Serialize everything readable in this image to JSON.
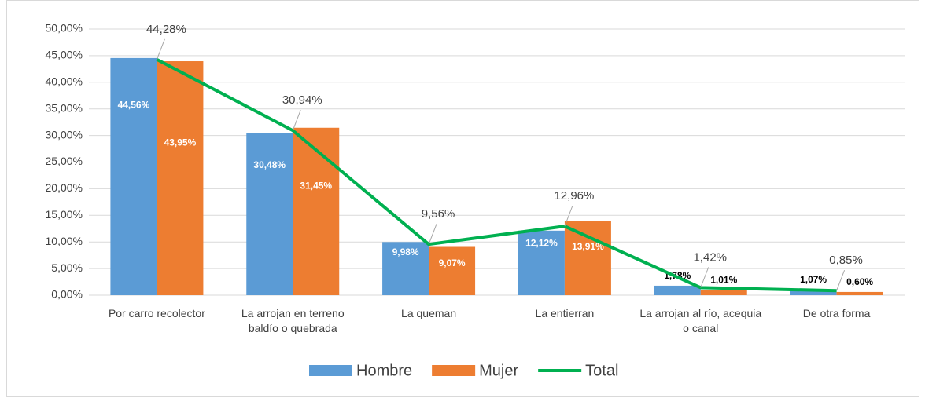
{
  "chart_data": {
    "type": "bar",
    "categories": [
      "Por carro recolector",
      "La arrojan en terreno baldío o quebrada",
      "La queman",
      "La entierran",
      "La arrojan al río, acequia o canal",
      "De otra forma"
    ],
    "series": [
      {
        "name": "Hombre",
        "color": "#5b9bd5",
        "type": "bar",
        "values": [
          44.56,
          30.48,
          9.98,
          12.12,
          1.78,
          1.07
        ],
        "value_labels": [
          "44,56%",
          "30,48%",
          "9,98%",
          "12,12%",
          "1,78%",
          "1,07%"
        ]
      },
      {
        "name": "Mujer",
        "color": "#ed7d31",
        "type": "bar",
        "values": [
          43.95,
          31.45,
          9.07,
          13.91,
          1.01,
          0.6
        ],
        "value_labels": [
          "43,95%",
          "31,45%",
          "9,07%",
          "13,91%",
          "1,01%",
          "0,60%"
        ]
      },
      {
        "name": "Total",
        "color": "#00b050",
        "type": "line",
        "values": [
          44.28,
          30.94,
          9.56,
          12.96,
          1.42,
          0.85
        ],
        "value_labels": [
          "44,28%",
          "30,94%",
          "9,56%",
          "12,96%",
          "1,42%",
          "0,85%"
        ]
      }
    ],
    "ylim": [
      0,
      50
    ],
    "yticks": [
      {
        "value": 0,
        "label": "0,00%"
      },
      {
        "value": 5,
        "label": "5,00%"
      },
      {
        "value": 10,
        "label": "10,00%"
      },
      {
        "value": 15,
        "label": "15,00%"
      },
      {
        "value": 20,
        "label": "20,00%"
      },
      {
        "value": 25,
        "label": "25,00%"
      },
      {
        "value": 30,
        "label": "30,00%"
      },
      {
        "value": 35,
        "label": "35,00%"
      },
      {
        "value": 40,
        "label": "40,00%"
      },
      {
        "value": 45,
        "label": "45,00%"
      },
      {
        "value": 50,
        "label": "50,00%"
      }
    ],
    "grid": true,
    "legend": "bottom"
  }
}
